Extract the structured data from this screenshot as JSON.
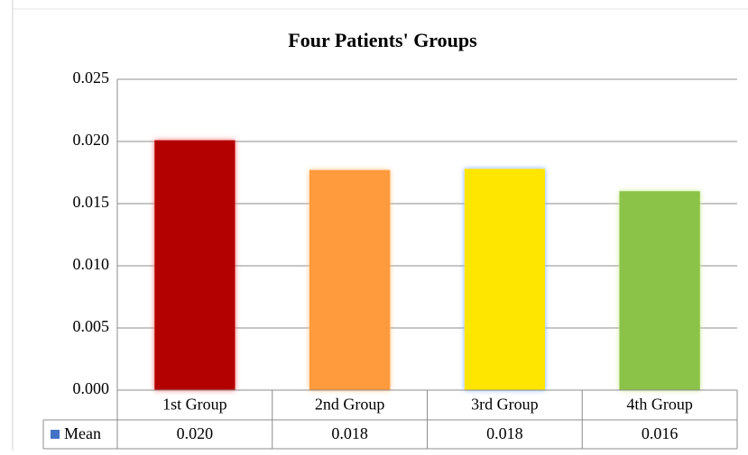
{
  "chart_data": {
    "type": "bar",
    "title": "Four Patients' Groups",
    "categories": [
      "1st Group",
      "2nd Group",
      "3rd Group",
      "4th Group"
    ],
    "series": [
      {
        "name": "Mean",
        "color": "#4472c4",
        "values": [
          0.0201,
          0.0177,
          0.0178,
          0.016
        ],
        "value_labels": [
          "0.020",
          "0.018",
          "0.018",
          "0.016"
        ],
        "bar_colors": [
          "#b30000",
          "#ff9a3c",
          "#ffe600",
          "#8bc34a"
        ],
        "glow_colors": [
          "#ff6b6b",
          "#ffc27a",
          "#7fb0ff",
          "#c9e98a"
        ]
      }
    ],
    "ylim": [
      0,
      0.025
    ],
    "yticks": [
      {
        "value": 0,
        "label": "0.000"
      },
      {
        "value": 0.005,
        "label": "0.005"
      },
      {
        "value": 0.01,
        "label": "0.010"
      },
      {
        "value": 0.015,
        "label": "0.015"
      },
      {
        "value": 0.02,
        "label": "0.020"
      },
      {
        "value": 0.025,
        "label": "0.025"
      }
    ],
    "grid": true
  }
}
